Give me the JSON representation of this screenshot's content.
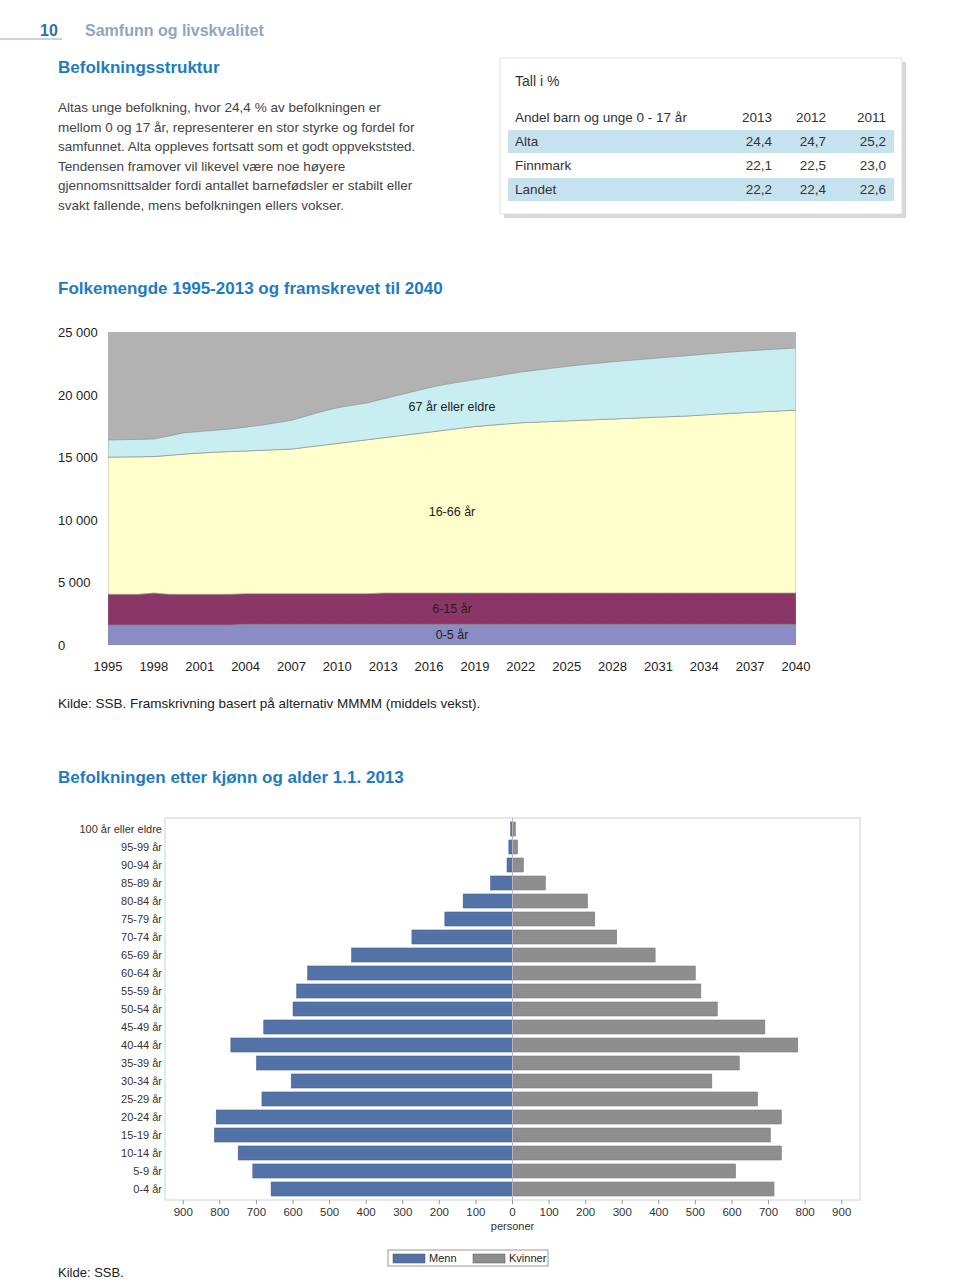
{
  "header": {
    "page_number": "10",
    "section": "Samfunn og livskvalitet"
  },
  "intro": {
    "heading": "Befolkningsstruktur",
    "lines": [
      "Altas unge befolkning, hvor 24,4 % av befolkningen er",
      "mellom 0 og 17 år, representerer en stor styrke og fordel for",
      "samfunnet. Alta oppleves fortsatt som et godt oppvekststed.",
      "Tendensen framover vil likevel være noe høyere",
      "gjennomsnittsalder fordi antallet barnefødsler er stabilt eller",
      "svakt fallende, mens befolkningen ellers vokser."
    ]
  },
  "table": {
    "caption": "Tall i %",
    "columns": [
      "Andel barn og unge 0 - 17 år",
      "2013",
      "2012",
      "2011"
    ],
    "rows": [
      [
        "Alta",
        "24,4",
        "24,7",
        "25,2"
      ],
      [
        "Finnmark",
        "22,1",
        "22,5",
        "23,0"
      ],
      [
        "Landet",
        "22,2",
        "22,4",
        "22,6"
      ]
    ]
  },
  "chart_data": [
    {
      "type": "area",
      "stacked": true,
      "grid": false,
      "title": "Folkemengde 1995-2013 og framskrevet til 2040",
      "x": [
        1995,
        1996,
        1997,
        1998,
        1999,
        2000,
        2001,
        2002,
        2003,
        2004,
        2005,
        2006,
        2007,
        2008,
        2009,
        2010,
        2011,
        2012,
        2013,
        2014,
        2015,
        2016,
        2017,
        2018,
        2019,
        2020,
        2021,
        2022,
        2023,
        2024,
        2025,
        2026,
        2027,
        2028,
        2029,
        2030,
        2031,
        2032,
        2033,
        2034,
        2035,
        2036,
        2037,
        2038,
        2039,
        2040
      ],
      "xlim": [
        1995,
        2040
      ],
      "xticks": [
        1995,
        1998,
        2001,
        2004,
        2007,
        2010,
        2013,
        2016,
        2019,
        2022,
        2025,
        2028,
        2031,
        2034,
        2037,
        2040
      ],
      "ylim": [
        0,
        25000
      ],
      "yticks": [
        {
          "value": 0,
          "label": "0"
        },
        {
          "value": 5000,
          "label": "5 000"
        },
        {
          "value": 10000,
          "label": "10 000"
        },
        {
          "value": 15000,
          "label": "15 000"
        },
        {
          "value": 20000,
          "label": "20 000"
        },
        {
          "value": 25000,
          "label": "25 000"
        }
      ],
      "series": [
        {
          "name": "0-5 år",
          "color": "#8a8cc6",
          "values": [
            1600,
            1600,
            1600,
            1600,
            1600,
            1600,
            1600,
            1600,
            1600,
            1650,
            1650,
            1650,
            1650,
            1650,
            1650,
            1650,
            1650,
            1650,
            1650,
            1650,
            1650,
            1650,
            1650,
            1650,
            1650,
            1650,
            1650,
            1650,
            1650,
            1650,
            1650,
            1650,
            1650,
            1650,
            1650,
            1650,
            1650,
            1650,
            1650,
            1650,
            1650,
            1650,
            1650,
            1650,
            1650,
            1650
          ]
        },
        {
          "name": "6-15 år",
          "color": "#8b3666",
          "values": [
            2450,
            2450,
            2450,
            2550,
            2450,
            2450,
            2450,
            2450,
            2450,
            2450,
            2450,
            2450,
            2450,
            2450,
            2450,
            2450,
            2450,
            2450,
            2500,
            2500,
            2500,
            2500,
            2500,
            2500,
            2500,
            2500,
            2500,
            2500,
            2500,
            2500,
            2500,
            2500,
            2500,
            2500,
            2500,
            2500,
            2500,
            2500,
            2500,
            2500,
            2500,
            2500,
            2500,
            2500,
            2500,
            2500
          ]
        },
        {
          "name": "16-66 år",
          "color": "#ffffcc",
          "values": [
            10950,
            10970,
            10980,
            10900,
            11100,
            11200,
            11280,
            11350,
            11400,
            11400,
            11450,
            11500,
            11550,
            11700,
            11850,
            12000,
            12150,
            12300,
            12400,
            12550,
            12700,
            12850,
            13000,
            13150,
            13300,
            13400,
            13500,
            13600,
            13650,
            13700,
            13750,
            13800,
            13850,
            13900,
            13950,
            14000,
            14050,
            14100,
            14150,
            14230,
            14300,
            14370,
            14430,
            14490,
            14550,
            14610
          ]
        },
        {
          "name": "67 år eller eldre",
          "color": "#c8eef2",
          "values": [
            1370,
            1380,
            1390,
            1400,
            1550,
            1700,
            1720,
            1750,
            1800,
            1900,
            2000,
            2150,
            2300,
            2500,
            2700,
            2850,
            2900,
            2950,
            3100,
            3250,
            3400,
            3550,
            3650,
            3700,
            3750,
            3850,
            3950,
            4050,
            4150,
            4250,
            4350,
            4430,
            4500,
            4570,
            4620,
            4670,
            4720,
            4770,
            4820,
            4840,
            4870,
            4900,
            4920,
            4940,
            4950,
            4960
          ]
        }
      ]
    },
    {
      "type": "pyramid",
      "orientation": "horizontal",
      "grid": false,
      "legend": "bottom",
      "title": "Befolkningen etter kjønn og alder 1.1. 2013",
      "xlabel": "personer",
      "categories": [
        "100 år eller eldre",
        "95-99 år",
        "90-94 år",
        "85-89 år",
        "80-84 år",
        "75-79 år",
        "70-74 år",
        "65-69 år",
        "60-64 år",
        "55-59 år",
        "50-54 år",
        "45-49 år",
        "40-44 år",
        "35-39 år",
        "30-34 år",
        "25-29 år",
        "20-24 år",
        "15-19 år",
        "10-14 år",
        "5-9 år",
        "0-4 år"
      ],
      "xlim": [
        0,
        950
      ],
      "xticks": [
        0,
        100,
        200,
        300,
        400,
        500,
        600,
        700,
        800,
        900
      ],
      "series": [
        {
          "name": "Menn",
          "color": "#5372a8",
          "values": [
            5,
            10,
            15,
            60,
            135,
            185,
            275,
            440,
            560,
            590,
            600,
            680,
            770,
            700,
            605,
            685,
            810,
            815,
            750,
            710,
            660
          ]
        },
        {
          "name": "Kvinner",
          "color": "#8e8e8e",
          "values": [
            8,
            14,
            30,
            90,
            205,
            225,
            285,
            390,
            500,
            515,
            560,
            690,
            780,
            620,
            545,
            670,
            735,
            705,
            735,
            610,
            715
          ]
        }
      ]
    }
  ],
  "sources": [
    "Kilde: SSB. Framskrivning basert på alternativ MMMM (middels vekst).",
    "Kilde: SSB."
  ]
}
